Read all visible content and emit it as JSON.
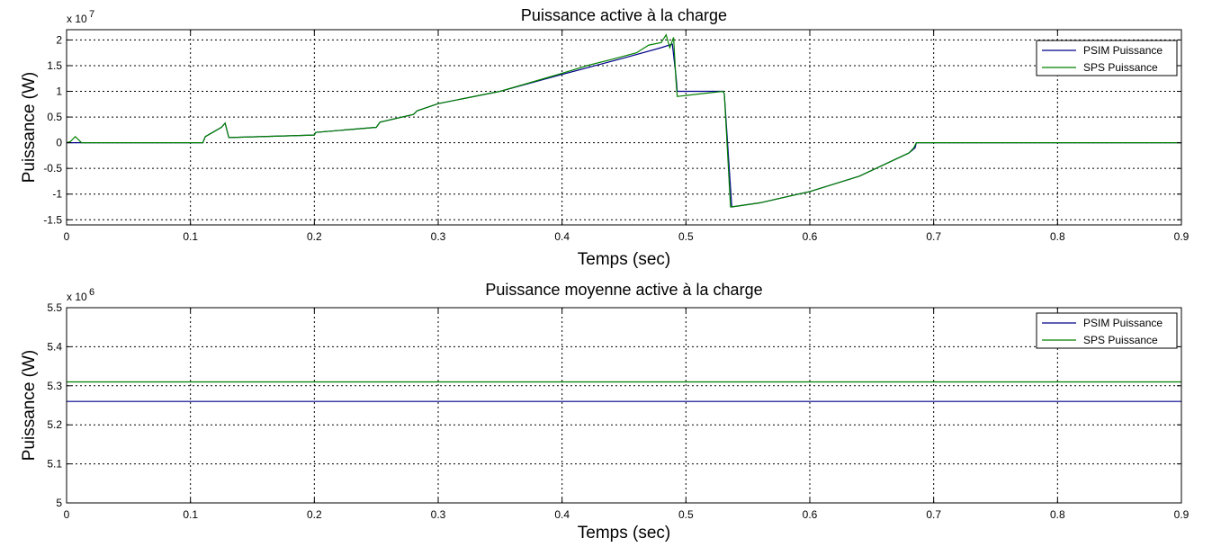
{
  "colors": {
    "psim": "#00008B",
    "sps": "#008000",
    "grid": "#000000",
    "background": "#ffffff"
  },
  "chart_data": [
    {
      "type": "line",
      "title": "Puissance active à la charge",
      "xlabel": "Temps (sec)",
      "ylabel": "Puissance (W)",
      "y_multiplier_label": "x 10",
      "y_multiplier_exponent": "7",
      "xlim": [
        0,
        0.9
      ],
      "ylim": [
        -1.6,
        2.2
      ],
      "xticks": [
        0,
        0.1,
        0.2,
        0.3,
        0.4,
        0.5,
        0.6,
        0.7,
        0.8,
        0.9
      ],
      "xtick_labels": [
        "0",
        "0.1",
        "0.2",
        "0.3",
        "0.4",
        "0.5",
        "0.6",
        "0.7",
        "0.8",
        "0.9"
      ],
      "yticks": [
        -1.5,
        -1,
        -0.5,
        0,
        0.5,
        1,
        1.5,
        2
      ],
      "ytick_labels": [
        "-1.5",
        "-1",
        "-0.5",
        "0",
        "0.5",
        "1",
        "1.5",
        "2"
      ],
      "grid": true,
      "legend_position": "top-right",
      "series": [
        {
          "name": "PSIM Puissance",
          "color": "#00008B",
          "x": [
            0,
            0.11,
            0.112,
            0.125,
            0.128,
            0.131,
            0.2,
            0.201,
            0.25,
            0.253,
            0.28,
            0.283,
            0.3,
            0.35,
            0.4,
            0.45,
            0.48,
            0.489,
            0.492,
            0.493,
            0.53,
            0.531,
            0.537,
            0.54,
            0.56,
            0.6,
            0.64,
            0.68,
            0.685,
            0.686,
            0.9
          ],
          "y": [
            0,
            0,
            0.12,
            0.3,
            0.38,
            0.1,
            0.15,
            0.2,
            0.3,
            0.4,
            0.55,
            0.62,
            0.76,
            1.0,
            1.33,
            1.65,
            1.85,
            1.92,
            1.3,
            1.0,
            1.0,
            0.95,
            -1.25,
            -1.24,
            -1.17,
            -0.95,
            -0.65,
            -0.2,
            -0.1,
            0,
            0
          ]
        },
        {
          "name": "SPS Puissance",
          "color": "#008000",
          "x": [
            0,
            0.003,
            0.007,
            0.01,
            0.012,
            0.11,
            0.112,
            0.125,
            0.128,
            0.131,
            0.2,
            0.201,
            0.25,
            0.253,
            0.28,
            0.283,
            0.3,
            0.35,
            0.4,
            0.42,
            0.44,
            0.46,
            0.47,
            0.48,
            0.484,
            0.487,
            0.49,
            0.492,
            0.493,
            0.53,
            0.531,
            0.536,
            0.54,
            0.56,
            0.6,
            0.64,
            0.68,
            0.684,
            0.686,
            0.9
          ],
          "y": [
            0,
            0.02,
            0.12,
            0.05,
            0,
            0,
            0.12,
            0.3,
            0.38,
            0.1,
            0.15,
            0.2,
            0.3,
            0.4,
            0.55,
            0.62,
            0.76,
            1.0,
            1.35,
            1.5,
            1.62,
            1.75,
            1.9,
            1.95,
            2.1,
            1.85,
            2.05,
            1.2,
            0.9,
            1.0,
            0.95,
            -1.25,
            -1.24,
            -1.17,
            -0.95,
            -0.65,
            -0.2,
            -0.1,
            0,
            0
          ]
        }
      ]
    },
    {
      "type": "line",
      "title": "Puissance moyenne active à la charge",
      "xlabel": "Temps (sec)",
      "ylabel": "Puissance (W)",
      "y_multiplier_label": "x 10",
      "y_multiplier_exponent": "6",
      "xlim": [
        0,
        0.9
      ],
      "ylim": [
        5.0,
        5.5
      ],
      "xticks": [
        0,
        0.1,
        0.2,
        0.3,
        0.4,
        0.5,
        0.6,
        0.7,
        0.8,
        0.9
      ],
      "xtick_labels": [
        "0",
        "0.1",
        "0.2",
        "0.3",
        "0.4",
        "0.5",
        "0.6",
        "0.7",
        "0.8",
        "0.9"
      ],
      "yticks": [
        5.0,
        5.1,
        5.2,
        5.3,
        5.4,
        5.5
      ],
      "ytick_labels": [
        "5",
        "5.1",
        "5.2",
        "5.3",
        "5.4",
        "5.5"
      ],
      "grid": true,
      "legend_position": "top-right",
      "series": [
        {
          "name": "PSIM Puissance",
          "color": "#00008B",
          "x": [
            0,
            0.9
          ],
          "y": [
            5.26,
            5.26
          ]
        },
        {
          "name": "SPS Puissance",
          "color": "#008000",
          "x": [
            0,
            0.9
          ],
          "y": [
            5.31,
            5.31
          ]
        }
      ]
    }
  ]
}
